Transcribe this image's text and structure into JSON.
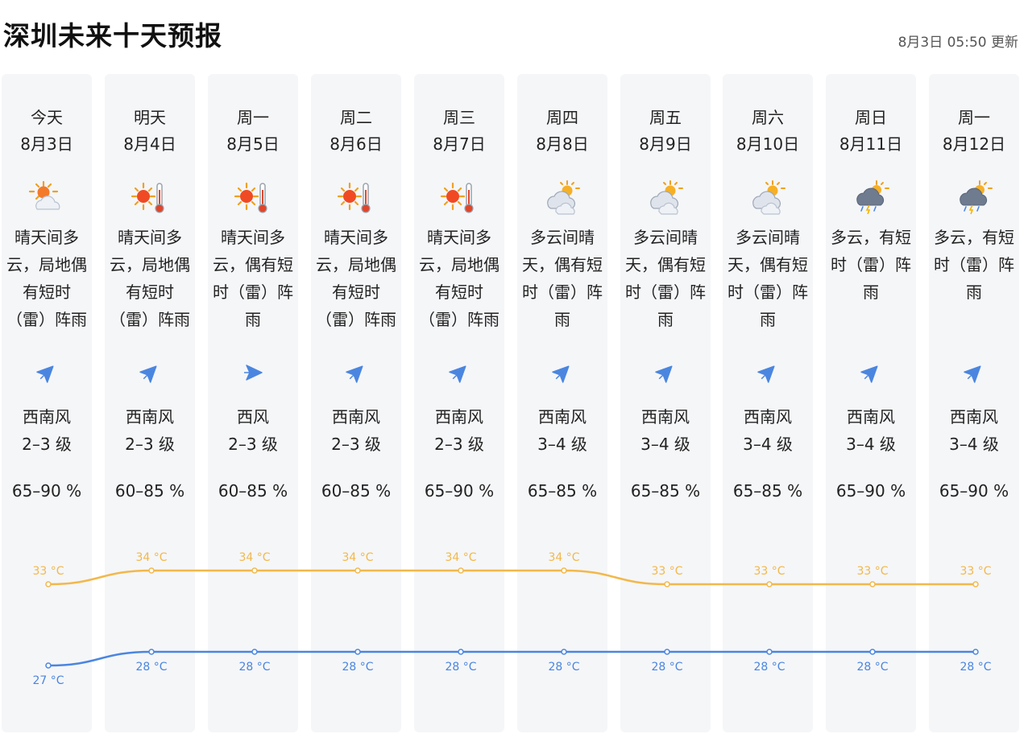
{
  "header": {
    "title": "深圳未来十天预报",
    "updated": "8月3日 05:50 更新"
  },
  "days": [
    {
      "day": "今天",
      "date": "8月3日",
      "icon": "sunny-partly-cloudy-icon",
      "desc": [
        "晴天间多",
        "云，局地偶",
        "有短时",
        "（雷）阵雨"
      ],
      "wind_dir": "西南风",
      "wind_level": "2–3 级",
      "humidity": "65–90 %"
    },
    {
      "day": "明天",
      "date": "8月4日",
      "icon": "sunny-hot-icon",
      "desc": [
        "晴天间多",
        "云，局地偶",
        "有短时",
        "（雷）阵雨"
      ],
      "wind_dir": "西南风",
      "wind_level": "2–3 级",
      "humidity": "60–85 %"
    },
    {
      "day": "周一",
      "date": "8月5日",
      "icon": "sunny-hot-icon",
      "desc": [
        "晴天间多",
        "云，偶有短",
        "时（雷）阵",
        "雨"
      ],
      "wind_dir": "西风",
      "wind_level": "2–3 级",
      "humidity": "60–85 %"
    },
    {
      "day": "周二",
      "date": "8月6日",
      "icon": "sunny-hot-icon",
      "desc": [
        "晴天间多",
        "云，局地偶",
        "有短时",
        "（雷）阵雨"
      ],
      "wind_dir": "西南风",
      "wind_level": "2–3 级",
      "humidity": "60–85 %"
    },
    {
      "day": "周三",
      "date": "8月7日",
      "icon": "sunny-hot-icon",
      "desc": [
        "晴天间多",
        "云，局地偶",
        "有短时",
        "（雷）阵雨"
      ],
      "wind_dir": "西南风",
      "wind_level": "2–3 级",
      "humidity": "65–90 %"
    },
    {
      "day": "周四",
      "date": "8月8日",
      "icon": "cloudy-sunny-icon",
      "desc": [
        "多云间晴",
        "天，偶有短",
        "时（雷）阵",
        "雨"
      ],
      "wind_dir": "西南风",
      "wind_level": "3–4 级",
      "humidity": "65–85 %"
    },
    {
      "day": "周五",
      "date": "8月9日",
      "icon": "cloudy-sunny-icon",
      "desc": [
        "多云间晴",
        "天，偶有短",
        "时（雷）阵",
        "雨"
      ],
      "wind_dir": "西南风",
      "wind_level": "3–4 级",
      "humidity": "65–85 %"
    },
    {
      "day": "周六",
      "date": "8月10日",
      "icon": "cloudy-sunny-icon",
      "desc": [
        "多云间晴",
        "天，偶有短",
        "时（雷）阵",
        "雨"
      ],
      "wind_dir": "西南风",
      "wind_level": "3–4 级",
      "humidity": "65–85 %"
    },
    {
      "day": "周日",
      "date": "8月11日",
      "icon": "cloudy-thunder-rain-icon",
      "desc": [
        "多云，有短",
        "时（雷）阵",
        "雨"
      ],
      "wind_dir": "西南风",
      "wind_level": "3–4 级",
      "humidity": "65–90 %"
    },
    {
      "day": "周一",
      "date": "8月12日",
      "icon": "cloudy-thunder-rain-icon",
      "desc": [
        "多云，有短",
        "时（雷）阵",
        "雨"
      ],
      "wind_dir": "西南风",
      "wind_level": "3–4 级",
      "humidity": "65–90 %"
    }
  ],
  "temperature": {
    "unit": "°C",
    "high": [
      33,
      34,
      34,
      34,
      34,
      34,
      33,
      33,
      33,
      33
    ],
    "low": [
      27,
      28,
      28,
      28,
      28,
      28,
      28,
      28,
      28,
      28
    ],
    "high_color": "#f2b84b",
    "low_color": "#4a86e0"
  }
}
